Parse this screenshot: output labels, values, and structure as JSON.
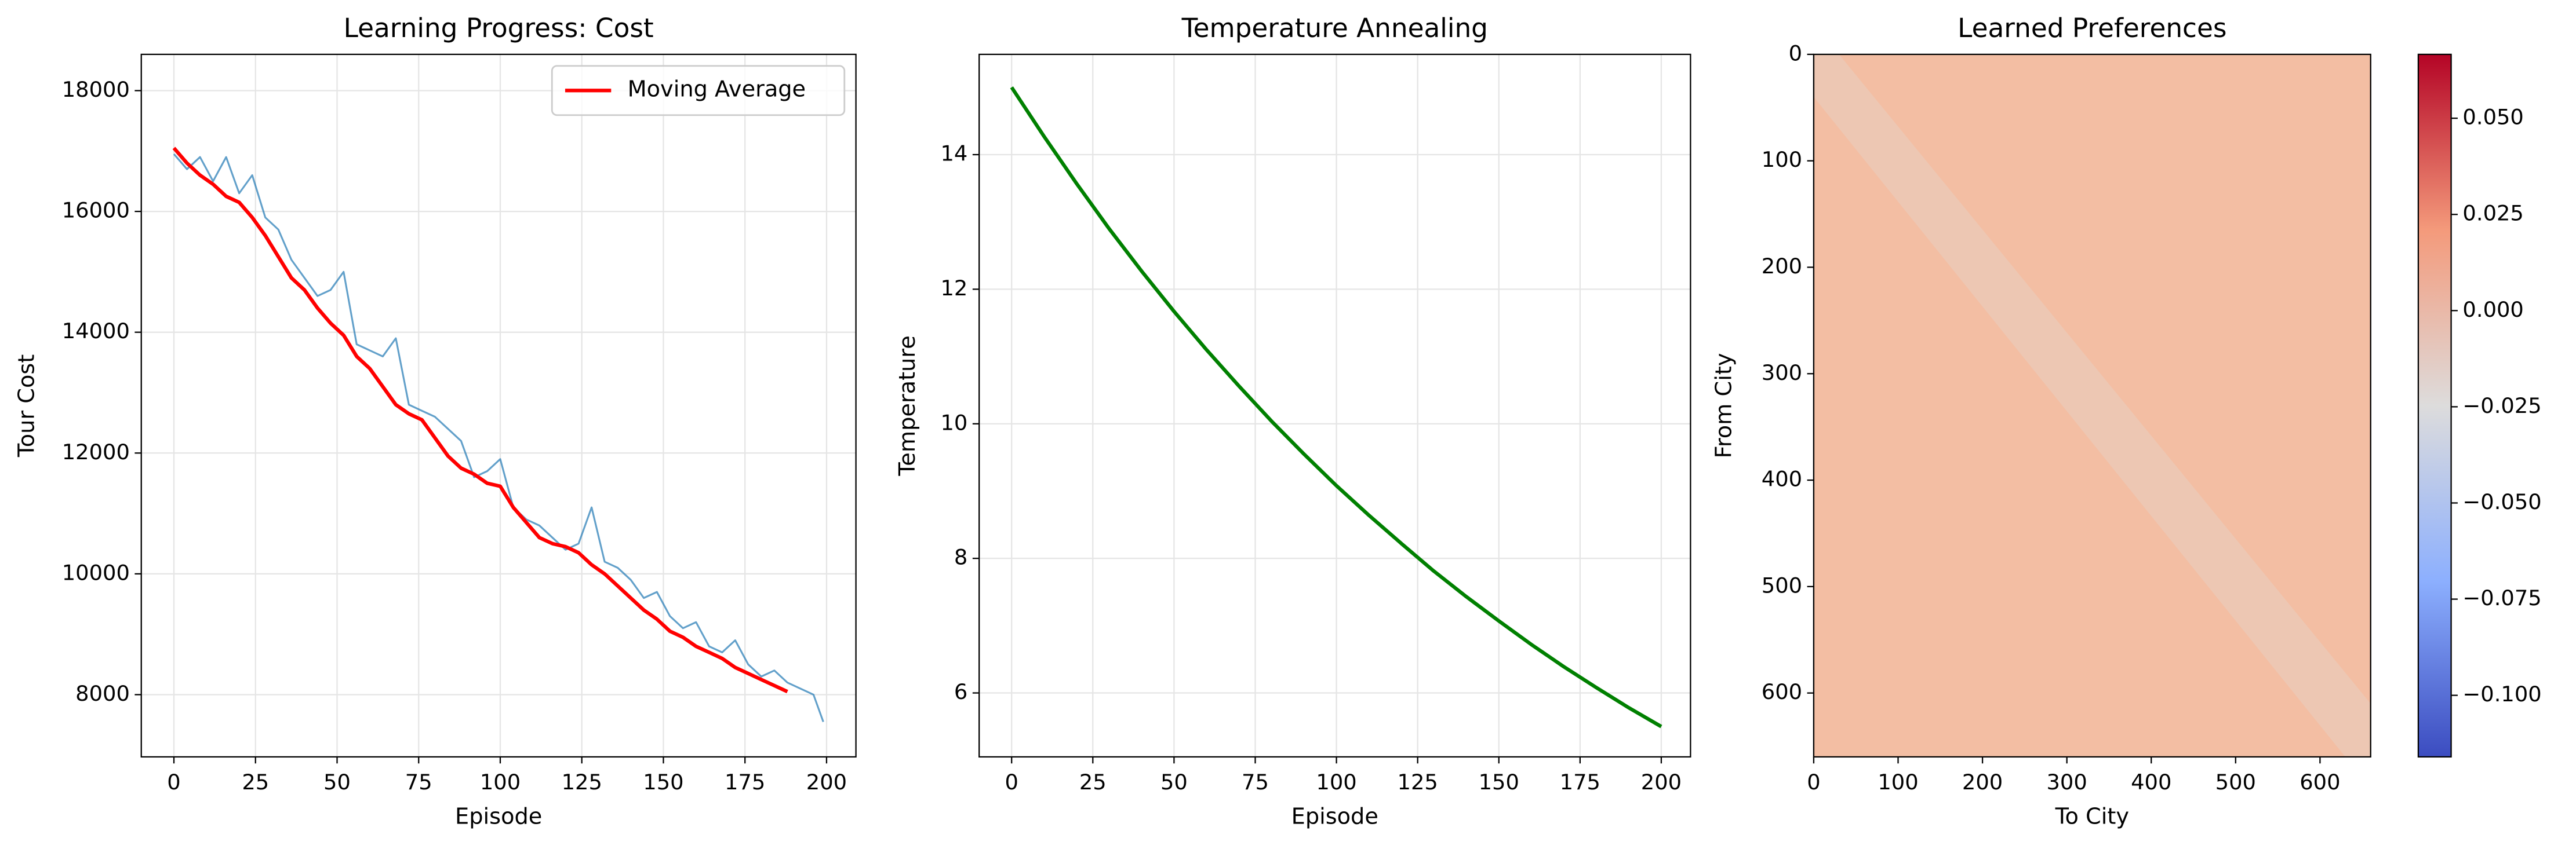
{
  "chart_data": [
    {
      "type": "line",
      "title": "Learning Progress: Cost",
      "xlabel": "Episode",
      "ylabel": "Tour Cost",
      "x": [
        0,
        4,
        8,
        12,
        16,
        20,
        24,
        28,
        32,
        36,
        40,
        44,
        48,
        52,
        56,
        60,
        64,
        68,
        72,
        76,
        80,
        84,
        88,
        92,
        96,
        100,
        104,
        108,
        112,
        116,
        120,
        124,
        128,
        132,
        136,
        140,
        144,
        148,
        152,
        156,
        160,
        164,
        168,
        172,
        176,
        180,
        184,
        188,
        192,
        196,
        199
      ],
      "series": [
        {
          "color": "#1f77b4",
          "values": [
            16950,
            16700,
            16900,
            16500,
            16900,
            16300,
            16600,
            15900,
            15700,
            15200,
            14900,
            14600,
            14700,
            15000,
            13800,
            13700,
            13600,
            13900,
            12800,
            12700,
            12600,
            12400,
            12200,
            11600,
            11700,
            11900,
            11100,
            10900,
            10800,
            10600,
            10400,
            10500,
            11100,
            10200,
            10100,
            9900,
            9600,
            9700,
            9300,
            9100,
            9200,
            8800,
            8700,
            8900,
            8500,
            8300,
            8400,
            8200,
            8100,
            8000,
            7550
          ]
        },
        {
          "name": "Moving Average",
          "color": "#ff0000",
          "values": [
            17050,
            16800,
            16600,
            16450,
            16250,
            16150,
            15900,
            15600,
            15250,
            14900,
            14700,
            14400,
            14150,
            13950,
            13600,
            13400,
            13100,
            12800,
            12650,
            12550,
            12250,
            11950,
            11750,
            11650,
            11500,
            11450,
            11100,
            10850,
            10600,
            10500,
            10450,
            10350,
            10150,
            10000,
            9800,
            9600,
            9400,
            9250,
            9050,
            8950,
            8800,
            8700,
            8600,
            8450,
            8350,
            8250,
            8150,
            8050,
            null,
            null,
            null
          ]
        }
      ],
      "xlim": [
        -10,
        209
      ],
      "xticks": [
        0,
        25,
        50,
        75,
        100,
        125,
        150,
        175,
        200
      ],
      "ylim": [
        6970,
        18600
      ],
      "yticks": [
        8000,
        10000,
        12000,
        14000,
        16000,
        18000
      ],
      "grid": true,
      "legend": "upper right"
    },
    {
      "type": "line",
      "title": "Temperature Annealing",
      "xlabel": "Episode",
      "ylabel": "Temperature",
      "x": [
        0,
        10,
        20,
        30,
        40,
        50,
        60,
        70,
        80,
        90,
        100,
        110,
        120,
        130,
        140,
        150,
        160,
        170,
        180,
        190,
        200
      ],
      "series": [
        {
          "color": "#008000",
          "values": [
            15,
            14.27,
            13.57,
            12.9,
            12.27,
            11.67,
            11.1,
            10.56,
            10.04,
            9.55,
            9.08,
            8.64,
            8.22,
            7.81,
            7.43,
            7.07,
            6.72,
            6.39,
            6.08,
            5.78,
            5.5
          ]
        }
      ],
      "xlim": [
        -10,
        209
      ],
      "xticks": [
        0,
        25,
        50,
        75,
        100,
        125,
        150,
        175,
        200
      ],
      "ylim": [
        5.05,
        15.49
      ],
      "yticks": [
        6,
        8,
        10,
        12,
        14
      ],
      "grid": true
    },
    {
      "type": "heatmap",
      "title": "Learned Preferences",
      "xlabel": "To City",
      "ylabel": "From City",
      "color": "#f3bea3",
      "colormap": "coolwarm",
      "xlim": [
        0,
        660
      ],
      "xticks": [
        0,
        100,
        200,
        300,
        400,
        500,
        600
      ],
      "ylim": [
        660,
        0
      ],
      "yticks": [
        0,
        100,
        200,
        300,
        400,
        500,
        600
      ],
      "grid": false,
      "colorbar": {
        "clim": [
          -0.116,
          0.0666
        ],
        "ticks": [
          {
            "value": 0.05,
            "label": "0.050"
          },
          {
            "value": 0.025,
            "label": "0.025"
          },
          {
            "value": 0,
            "label": "0.000"
          },
          {
            "value": -0.025,
            "label": "−0.025"
          },
          {
            "value": -0.05,
            "label": "−0.050"
          },
          {
            "value": -0.075,
            "label": "−0.075"
          },
          {
            "value": -0.1,
            "label": "−0.100"
          }
        ]
      }
    }
  ]
}
